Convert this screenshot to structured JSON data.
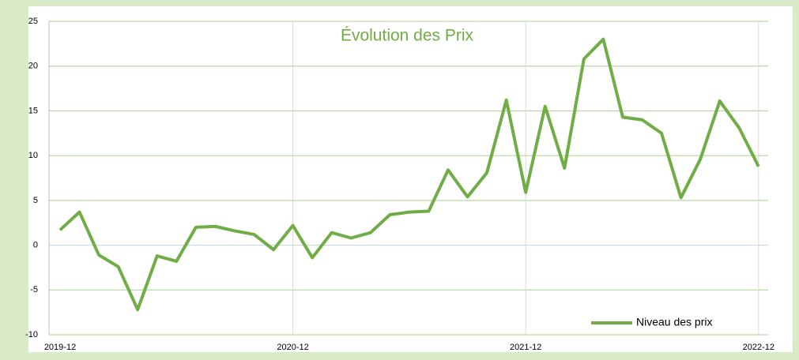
{
  "chart_data": {
    "type": "line",
    "title": "Évolution des Prix",
    "categories": [
      "2019-12",
      null,
      null,
      null,
      null,
      null,
      null,
      null,
      null,
      null,
      null,
      null,
      "2020-12",
      null,
      null,
      null,
      null,
      null,
      null,
      null,
      null,
      null,
      null,
      null,
      "2021-12",
      null,
      null,
      null,
      null,
      null,
      null,
      null,
      null,
      null,
      null,
      null,
      "2022-12"
    ],
    "series": [
      {
        "name": "Niveau des prix",
        "color": "#70ad47",
        "values": [
          1.7,
          3.7,
          -1.1,
          -2.4,
          -7.2,
          -1.2,
          -1.8,
          2.0,
          2.1,
          1.6,
          1.2,
          -0.5,
          2.2,
          -1.4,
          1.4,
          0.8,
          1.4,
          3.4,
          3.7,
          3.8,
          8.4,
          5.4,
          8.1,
          16.2,
          5.9,
          15.5,
          8.6,
          20.8,
          23.0,
          14.3,
          14.0,
          12.5,
          5.3,
          9.6,
          16.1,
          13.1,
          8.8
        ]
      }
    ],
    "ylim": [
      -10,
      25
    ],
    "yticks": [
      -10,
      -5,
      0,
      5,
      10,
      15,
      20,
      25
    ],
    "grid": true,
    "legend": "bottom-right"
  }
}
